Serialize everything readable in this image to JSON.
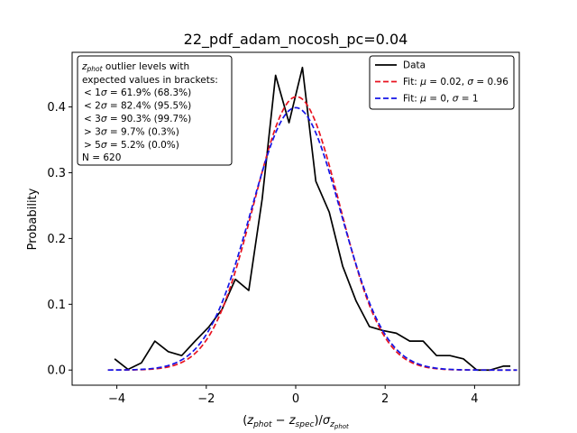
{
  "chart_data": {
    "type": "line",
    "title": "22_pdf_adam_nocosh_pc=0.04",
    "xlabel_parts": {
      "open": "(",
      "z1": "z",
      "sub1": "phot",
      "minus": " − ",
      "z2": "z",
      "sub2": "spec",
      "close": ")/",
      "sigma": "σ",
      "sigz": "z",
      "sigsub": "phot"
    },
    "ylabel": "Probability",
    "xlim": [
      -5,
      5
    ],
    "ylim": [
      -0.023,
      0.483
    ],
    "xticks": [
      -4,
      -2,
      0,
      2,
      4
    ],
    "xtick_labels": [
      "−4",
      "−2",
      "0",
      "2",
      "4"
    ],
    "yticks": [
      0.0,
      0.1,
      0.2,
      0.3,
      0.4
    ],
    "ytick_labels": [
      "0.0",
      "0.1",
      "0.2",
      "0.3",
      "0.4"
    ],
    "grid": false,
    "legend_position": "top-right",
    "series": [
      {
        "name": "Data",
        "color": "#000000",
        "dash": "solid",
        "x": [
          -4.05,
          -3.75,
          -3.45,
          -3.15,
          -2.85,
          -2.55,
          -2.25,
          -1.95,
          -1.65,
          -1.35,
          -1.05,
          -0.75,
          -0.45,
          -0.15,
          0.15,
          0.45,
          0.75,
          1.05,
          1.35,
          1.65,
          1.95,
          2.25,
          2.55,
          2.85,
          3.15,
          3.45,
          3.75,
          4.05,
          4.35,
          4.65,
          4.8
        ],
        "y": [
          0.017,
          0.001,
          0.011,
          0.044,
          0.028,
          0.022,
          0.044,
          0.065,
          0.092,
          0.138,
          0.121,
          0.26,
          0.448,
          0.376,
          0.46,
          0.287,
          0.24,
          0.158,
          0.105,
          0.066,
          0.06,
          0.056,
          0.044,
          0.044,
          0.022,
          0.022,
          0.017,
          0.0,
          0.0,
          0.006,
          0.006
        ],
        "label_parts": {
          "text": "Data"
        }
      },
      {
        "name": "Fit: μ = 0.02, σ = 0.96",
        "color": "#e8121f",
        "dash": "dashed",
        "mu": 0.02,
        "sigma": 0.96,
        "x_range": [
          -4.2,
          4.95
        ],
        "label_parts": {
          "a": "Fit: ",
          "mu": "μ",
          "b": " = 0.02, ",
          "sig": "σ",
          "c": " = 0.96"
        }
      },
      {
        "name": "Fit: μ = 0, σ = 1",
        "color": "#1414e6",
        "dash": "dashed",
        "mu": 0,
        "sigma": 1,
        "x_range": [
          -4.2,
          4.95
        ],
        "label_parts": {
          "a": "Fit: ",
          "mu": "μ",
          "b": " = 0, ",
          "sig": "σ",
          "c": " = 1"
        }
      }
    ],
    "annotation": {
      "title_z": "z",
      "title_sub": "phot",
      "title_rest": " outlier levels with",
      "line2": " expected values in brackets:",
      "lines": [
        {
          "lt": "<",
          "n": "1",
          "sigma": "σ",
          "val": " = 61.9% (68.3%)"
        },
        {
          "lt": "<",
          "n": "2",
          "sigma": "σ",
          "val": " = 82.4% (95.5%)"
        },
        {
          "lt": "<",
          "n": "3",
          "sigma": "σ",
          "val": " = 90.3% (99.7%)"
        },
        {
          "lt": ">",
          "n": "3",
          "sigma": "σ",
          "val": " = 9.7% (0.3%)"
        },
        {
          "lt": ">",
          "n": "5",
          "sigma": "σ",
          "val": " = 5.2% (0.0%)"
        }
      ],
      "count": "N = 620"
    }
  }
}
